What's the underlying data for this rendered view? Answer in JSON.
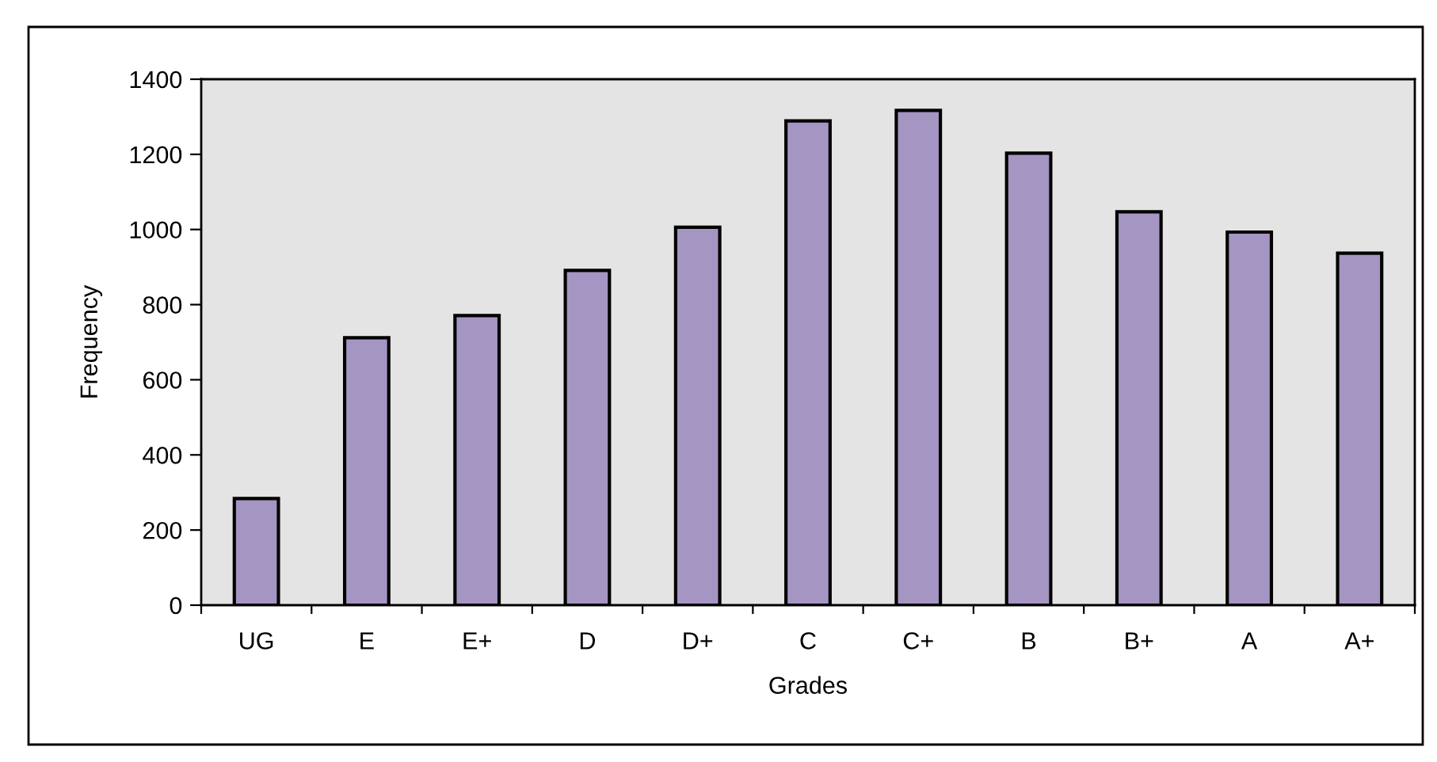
{
  "chart_data": {
    "type": "bar",
    "xlabel": "Grades",
    "ylabel": "Frequency",
    "categories": [
      "UG",
      "E",
      "E+",
      "D",
      "D+",
      "C",
      "C+",
      "B",
      "B+",
      "A",
      "A+"
    ],
    "values": [
      284,
      712,
      771,
      891,
      1006,
      1289,
      1317,
      1203,
      1047,
      993,
      937
    ],
    "color": "#a595c2",
    "ylim": [
      0,
      1400
    ],
    "yticks": [
      0,
      200,
      400,
      600,
      800,
      1000,
      1200,
      1400
    ],
    "grid": false
  }
}
